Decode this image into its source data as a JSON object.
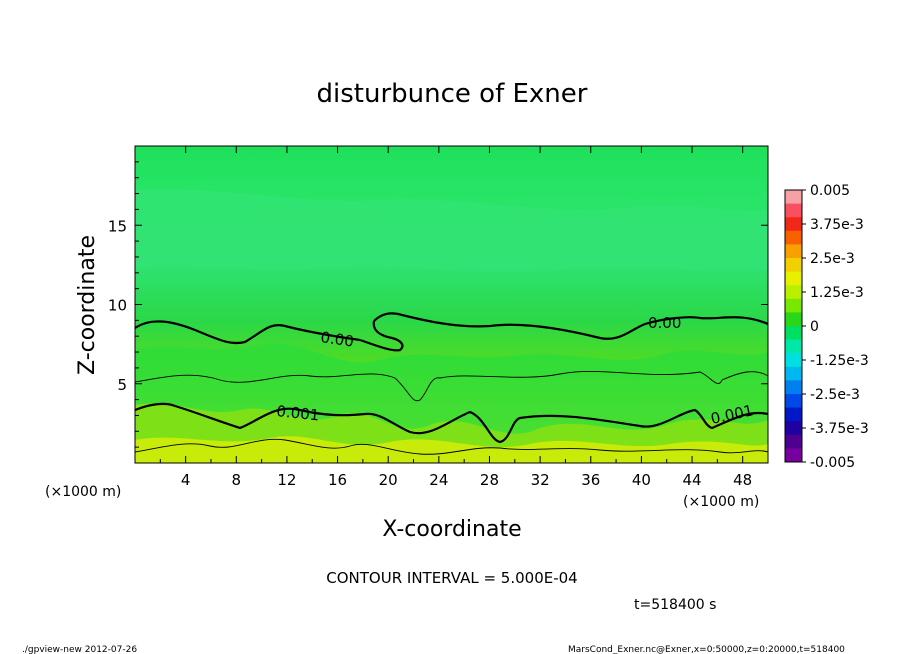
{
  "chart_data": {
    "type": "heatmap",
    "title": "disturbunce of Exner",
    "xlabel": "X-coordinate",
    "ylabel": "Z-coordinate",
    "x_unit": "(×1000 m)",
    "x_unit_right": "(×1000 m)",
    "xlim": [
      0,
      50
    ],
    "ylim": [
      0,
      20
    ],
    "x_ticks": [
      4,
      8,
      12,
      16,
      20,
      24,
      28,
      32,
      36,
      40,
      44,
      48
    ],
    "y_ticks": [
      5,
      10,
      15
    ],
    "colorbar": {
      "labels": [
        "0.005",
        "3.75e-3",
        "2.5e-3",
        "1.25e-3",
        "0",
        "-1.25e-3",
        "-2.5e-3",
        "-3.75e-3",
        "-0.005"
      ],
      "colors": [
        "#f8a0a8",
        "#f85060",
        "#f02818",
        "#f86000",
        "#f8a000",
        "#f0d000",
        "#e8f000",
        "#b8f000",
        "#78e800",
        "#28d818",
        "#00e060",
        "#00e8a8",
        "#00e0e0",
        "#00b8f0",
        "#0080f0",
        "#0048e8",
        "#0018c8",
        "#2000a0",
        "#500090",
        "#7800a0"
      ]
    },
    "contour_labels": [
      {
        "text": "0.00",
        "x": 17.0,
        "z": 7.9
      },
      {
        "text": "0.00",
        "x": 41.5,
        "z": 8.6
      },
      {
        "text": "0.001",
        "x": 14.5,
        "z": 2.8
      },
      {
        "text": "0.001",
        "x": 45.5,
        "z": 2.6
      }
    ],
    "contour_interval": "CONTOUR INTERVAL = 5.000E-04",
    "time": "t=518400 s"
  },
  "footer": {
    "left": "./gpview-new  2012-07-26",
    "right": "MarsCond_Exner.nc@Exner,x=0:50000,z=0:20000,t=518400"
  }
}
